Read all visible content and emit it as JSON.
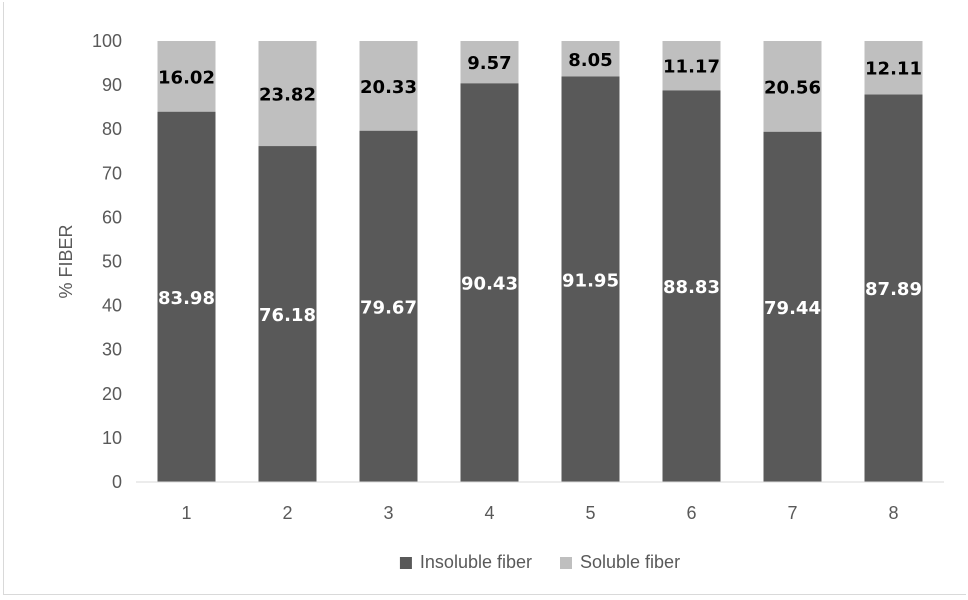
{
  "chart_data": {
    "type": "bar",
    "stacked": true,
    "categories": [
      "1",
      "2",
      "3",
      "4",
      "5",
      "6",
      "7",
      "8"
    ],
    "series": [
      {
        "name": "Insoluble fiber",
        "color": "#595959",
        "label_color": "#ffffff",
        "values": [
          83.98,
          76.18,
          79.67,
          90.43,
          91.95,
          88.83,
          79.44,
          87.89
        ],
        "labels": [
          "83.98",
          "76.18",
          "79.67",
          "90.43",
          "91.95",
          "88.83",
          "79.44",
          "87.89"
        ]
      },
      {
        "name": "Soluble fiber",
        "color": "#bfbfbf",
        "label_color": "#000000",
        "values": [
          16.02,
          23.82,
          20.33,
          9.57,
          8.05,
          11.17,
          20.56,
          12.11
        ],
        "labels": [
          "16.02",
          "23.82",
          "20.33",
          "9.57",
          "8.05",
          "11.17",
          "20.56",
          "12.11"
        ]
      }
    ],
    "ylabel": "% FIBER",
    "ylim": [
      0,
      100
    ],
    "yticks": [
      "0",
      "10",
      "20",
      "30",
      "40",
      "50",
      "60",
      "70",
      "80",
      "90",
      "100"
    ],
    "grid": false,
    "legend": "bottom"
  }
}
